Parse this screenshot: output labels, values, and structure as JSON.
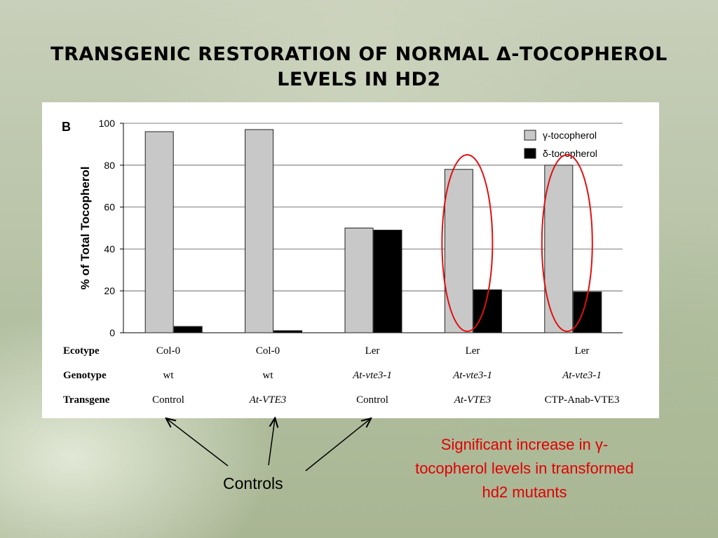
{
  "slide": {
    "title_line1": "Transgenic Restoration of Normal δ-Tocopherol",
    "title_line2": "levels in hd2",
    "controls_label": "Controls",
    "annotation": "Significant increase in γ-tocopherol levels in transformed hd2 mutants",
    "colors": {
      "annotation_red": "#e00000",
      "ellipse_red": "#e01010"
    }
  },
  "chart_data": {
    "type": "bar",
    "panel_label": "B",
    "ylabel": "% of Total Tocopherol",
    "xlabel": "",
    "ylim": [
      0,
      100
    ],
    "yticks": [
      0,
      20,
      40,
      60,
      80,
      100
    ],
    "grid": true,
    "legend_position": "top-right",
    "series": [
      {
        "name": "γ-tocopherol",
        "values": [
          96,
          97,
          50,
          78,
          80
        ],
        "color": "#c8c8c8"
      },
      {
        "name": "δ-tocopherol",
        "values": [
          3,
          1,
          49,
          20.5,
          19.5
        ],
        "color": "#000000"
      }
    ],
    "row_labels": [
      "Ecotype",
      "Genotype",
      "Transgene"
    ],
    "groups": [
      {
        "ecotype": "Col-0",
        "genotype": "wt",
        "transgene": "Control"
      },
      {
        "ecotype": "Col-0",
        "genotype": "wt",
        "transgene": "At-VTE3"
      },
      {
        "ecotype": "Ler",
        "genotype": "At-vte3-1",
        "transgene": "Control"
      },
      {
        "ecotype": "Ler",
        "genotype": "At-vte3-1",
        "transgene": "At-VTE3"
      },
      {
        "ecotype": "Ler",
        "genotype": "At-vte3-1",
        "transgene": "CTP-Anab-VTE3"
      }
    ]
  }
}
